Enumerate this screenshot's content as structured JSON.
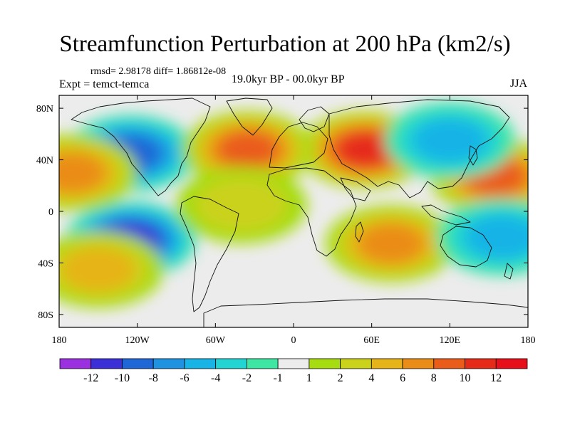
{
  "title": "Streamfunction Perturbation at 200 hPa (km2/s)",
  "stats_text": "rmsd= 2.98178 diff= 1.86812e-08",
  "experiment_text": "Expt = temct-temca",
  "time_range_text": "19.0kyr BP - 00.0kyr BP",
  "season": "JJA",
  "map_data": {
    "type": "filled-contour-map",
    "projection": "cylindrical-equidistant",
    "lon_range": [
      -180,
      180
    ],
    "lat_range": [
      -90,
      90
    ],
    "x_ticks": [
      "180",
      "120W",
      "60W",
      "0",
      "60E",
      "120E",
      "180"
    ],
    "y_ticks": [
      "80N",
      "40N",
      "0",
      "40S",
      "80S"
    ],
    "colorbar_levels": [
      "-12",
      "-10",
      "-8",
      "-6",
      "-4",
      "-2",
      "-1",
      "1",
      "2",
      "4",
      "6",
      "8",
      "10",
      "12"
    ],
    "colorbar_colors": [
      "#9b30e0",
      "#3b2fd8",
      "#1f66d6",
      "#1f92e0",
      "#19b4e6",
      "#22d4d2",
      "#3ee6a4",
      "#ececec",
      "#a6dc10",
      "#cbd21c",
      "#e6b418",
      "#ea8c18",
      "#ea5c1a",
      "#e62a1a",
      "#e60f1a"
    ],
    "field_features": [
      {
        "lon": -125,
        "lat": 45,
        "value": -9
      },
      {
        "lon": -125,
        "lat": -22,
        "value": -10
      },
      {
        "lon": -170,
        "lat": 30,
        "value": 6
      },
      {
        "lon": 55,
        "lat": 48,
        "value": 10
      },
      {
        "lon": -35,
        "lat": 48,
        "value": 8
      },
      {
        "lon": 155,
        "lat": 27,
        "value": 8
      },
      {
        "lon": 75,
        "lat": -25,
        "value": 7
      },
      {
        "lon": 120,
        "lat": 55,
        "value": -5
      },
      {
        "lon": -150,
        "lat": -45,
        "value": 5
      },
      {
        "lon": -40,
        "lat": 5,
        "value": 3
      },
      {
        "lon": 160,
        "lat": -20,
        "value": -4
      }
    ]
  }
}
